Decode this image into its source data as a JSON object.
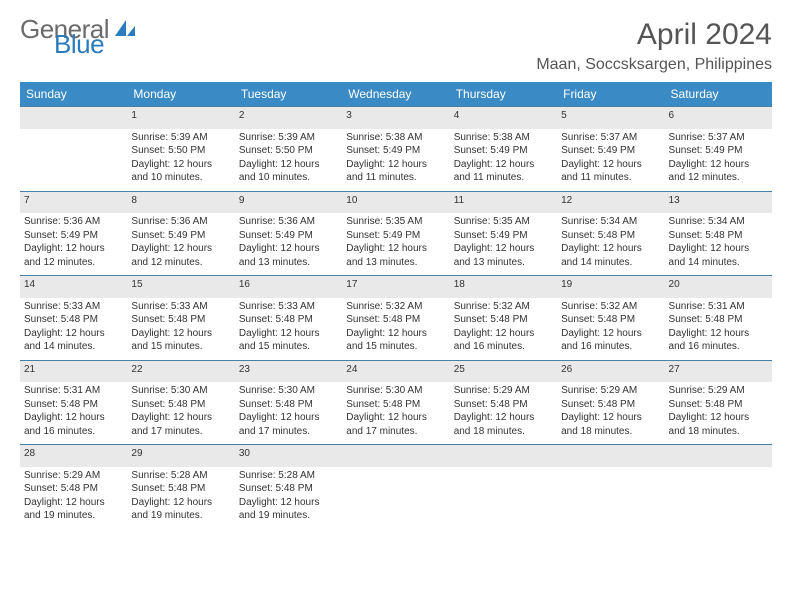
{
  "brand": {
    "text1": "General",
    "text2": "Blue",
    "color_gray": "#6b6b6b",
    "color_blue": "#2b7bbf"
  },
  "title": "April 2024",
  "location": "Maan, Soccsksargen, Philippines",
  "header_bg": "#3a8ac6",
  "daynum_bg": "#e9e9e9",
  "row_border": "#4a7fa8",
  "weekdays": [
    "Sunday",
    "Monday",
    "Tuesday",
    "Wednesday",
    "Thursday",
    "Friday",
    "Saturday"
  ],
  "weeks": [
    [
      null,
      {
        "n": "1",
        "sr": "Sunrise: 5:39 AM",
        "ss": "Sunset: 5:50 PM",
        "d1": "Daylight: 12 hours",
        "d2": "and 10 minutes."
      },
      {
        "n": "2",
        "sr": "Sunrise: 5:39 AM",
        "ss": "Sunset: 5:50 PM",
        "d1": "Daylight: 12 hours",
        "d2": "and 10 minutes."
      },
      {
        "n": "3",
        "sr": "Sunrise: 5:38 AM",
        "ss": "Sunset: 5:49 PM",
        "d1": "Daylight: 12 hours",
        "d2": "and 11 minutes."
      },
      {
        "n": "4",
        "sr": "Sunrise: 5:38 AM",
        "ss": "Sunset: 5:49 PM",
        "d1": "Daylight: 12 hours",
        "d2": "and 11 minutes."
      },
      {
        "n": "5",
        "sr": "Sunrise: 5:37 AM",
        "ss": "Sunset: 5:49 PM",
        "d1": "Daylight: 12 hours",
        "d2": "and 11 minutes."
      },
      {
        "n": "6",
        "sr": "Sunrise: 5:37 AM",
        "ss": "Sunset: 5:49 PM",
        "d1": "Daylight: 12 hours",
        "d2": "and 12 minutes."
      }
    ],
    [
      {
        "n": "7",
        "sr": "Sunrise: 5:36 AM",
        "ss": "Sunset: 5:49 PM",
        "d1": "Daylight: 12 hours",
        "d2": "and 12 minutes."
      },
      {
        "n": "8",
        "sr": "Sunrise: 5:36 AM",
        "ss": "Sunset: 5:49 PM",
        "d1": "Daylight: 12 hours",
        "d2": "and 12 minutes."
      },
      {
        "n": "9",
        "sr": "Sunrise: 5:36 AM",
        "ss": "Sunset: 5:49 PM",
        "d1": "Daylight: 12 hours",
        "d2": "and 13 minutes."
      },
      {
        "n": "10",
        "sr": "Sunrise: 5:35 AM",
        "ss": "Sunset: 5:49 PM",
        "d1": "Daylight: 12 hours",
        "d2": "and 13 minutes."
      },
      {
        "n": "11",
        "sr": "Sunrise: 5:35 AM",
        "ss": "Sunset: 5:49 PM",
        "d1": "Daylight: 12 hours",
        "d2": "and 13 minutes."
      },
      {
        "n": "12",
        "sr": "Sunrise: 5:34 AM",
        "ss": "Sunset: 5:48 PM",
        "d1": "Daylight: 12 hours",
        "d2": "and 14 minutes."
      },
      {
        "n": "13",
        "sr": "Sunrise: 5:34 AM",
        "ss": "Sunset: 5:48 PM",
        "d1": "Daylight: 12 hours",
        "d2": "and 14 minutes."
      }
    ],
    [
      {
        "n": "14",
        "sr": "Sunrise: 5:33 AM",
        "ss": "Sunset: 5:48 PM",
        "d1": "Daylight: 12 hours",
        "d2": "and 14 minutes."
      },
      {
        "n": "15",
        "sr": "Sunrise: 5:33 AM",
        "ss": "Sunset: 5:48 PM",
        "d1": "Daylight: 12 hours",
        "d2": "and 15 minutes."
      },
      {
        "n": "16",
        "sr": "Sunrise: 5:33 AM",
        "ss": "Sunset: 5:48 PM",
        "d1": "Daylight: 12 hours",
        "d2": "and 15 minutes."
      },
      {
        "n": "17",
        "sr": "Sunrise: 5:32 AM",
        "ss": "Sunset: 5:48 PM",
        "d1": "Daylight: 12 hours",
        "d2": "and 15 minutes."
      },
      {
        "n": "18",
        "sr": "Sunrise: 5:32 AM",
        "ss": "Sunset: 5:48 PM",
        "d1": "Daylight: 12 hours",
        "d2": "and 16 minutes."
      },
      {
        "n": "19",
        "sr": "Sunrise: 5:32 AM",
        "ss": "Sunset: 5:48 PM",
        "d1": "Daylight: 12 hours",
        "d2": "and 16 minutes."
      },
      {
        "n": "20",
        "sr": "Sunrise: 5:31 AM",
        "ss": "Sunset: 5:48 PM",
        "d1": "Daylight: 12 hours",
        "d2": "and 16 minutes."
      }
    ],
    [
      {
        "n": "21",
        "sr": "Sunrise: 5:31 AM",
        "ss": "Sunset: 5:48 PM",
        "d1": "Daylight: 12 hours",
        "d2": "and 16 minutes."
      },
      {
        "n": "22",
        "sr": "Sunrise: 5:30 AM",
        "ss": "Sunset: 5:48 PM",
        "d1": "Daylight: 12 hours",
        "d2": "and 17 minutes."
      },
      {
        "n": "23",
        "sr": "Sunrise: 5:30 AM",
        "ss": "Sunset: 5:48 PM",
        "d1": "Daylight: 12 hours",
        "d2": "and 17 minutes."
      },
      {
        "n": "24",
        "sr": "Sunrise: 5:30 AM",
        "ss": "Sunset: 5:48 PM",
        "d1": "Daylight: 12 hours",
        "d2": "and 17 minutes."
      },
      {
        "n": "25",
        "sr": "Sunrise: 5:29 AM",
        "ss": "Sunset: 5:48 PM",
        "d1": "Daylight: 12 hours",
        "d2": "and 18 minutes."
      },
      {
        "n": "26",
        "sr": "Sunrise: 5:29 AM",
        "ss": "Sunset: 5:48 PM",
        "d1": "Daylight: 12 hours",
        "d2": "and 18 minutes."
      },
      {
        "n": "27",
        "sr": "Sunrise: 5:29 AM",
        "ss": "Sunset: 5:48 PM",
        "d1": "Daylight: 12 hours",
        "d2": "and 18 minutes."
      }
    ],
    [
      {
        "n": "28",
        "sr": "Sunrise: 5:29 AM",
        "ss": "Sunset: 5:48 PM",
        "d1": "Daylight: 12 hours",
        "d2": "and 19 minutes."
      },
      {
        "n": "29",
        "sr": "Sunrise: 5:28 AM",
        "ss": "Sunset: 5:48 PM",
        "d1": "Daylight: 12 hours",
        "d2": "and 19 minutes."
      },
      {
        "n": "30",
        "sr": "Sunrise: 5:28 AM",
        "ss": "Sunset: 5:48 PM",
        "d1": "Daylight: 12 hours",
        "d2": "and 19 minutes."
      },
      null,
      null,
      null,
      null
    ]
  ]
}
